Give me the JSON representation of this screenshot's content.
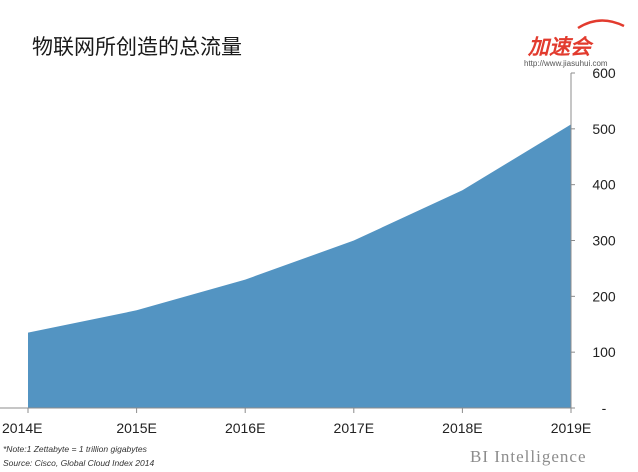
{
  "chart_data": {
    "type": "area",
    "title": "物联网所创造的总流量",
    "x": [
      "2014E",
      "2015E",
      "2016E",
      "2017E",
      "2018E",
      "2019E"
    ],
    "values": [
      135,
      175,
      230,
      300,
      390,
      508
    ],
    "yticks": [
      "-",
      "100",
      "200",
      "300",
      "400",
      "500",
      "600"
    ],
    "ylim": [
      0,
      600
    ],
    "xlabel": "",
    "ylabel": "",
    "y_axis_position": "right",
    "grid": false,
    "legend": "none",
    "color": "#5394c2"
  },
  "footer": {
    "note": "*Note:1 Zettabyte = 1 trillion gigabytes",
    "source": "Source: Cisco, Global Cloud Index 2014",
    "brand": "BI Intelligence"
  },
  "logo": {
    "text": "加速会",
    "url": "http://www.jiasuhui.com"
  }
}
